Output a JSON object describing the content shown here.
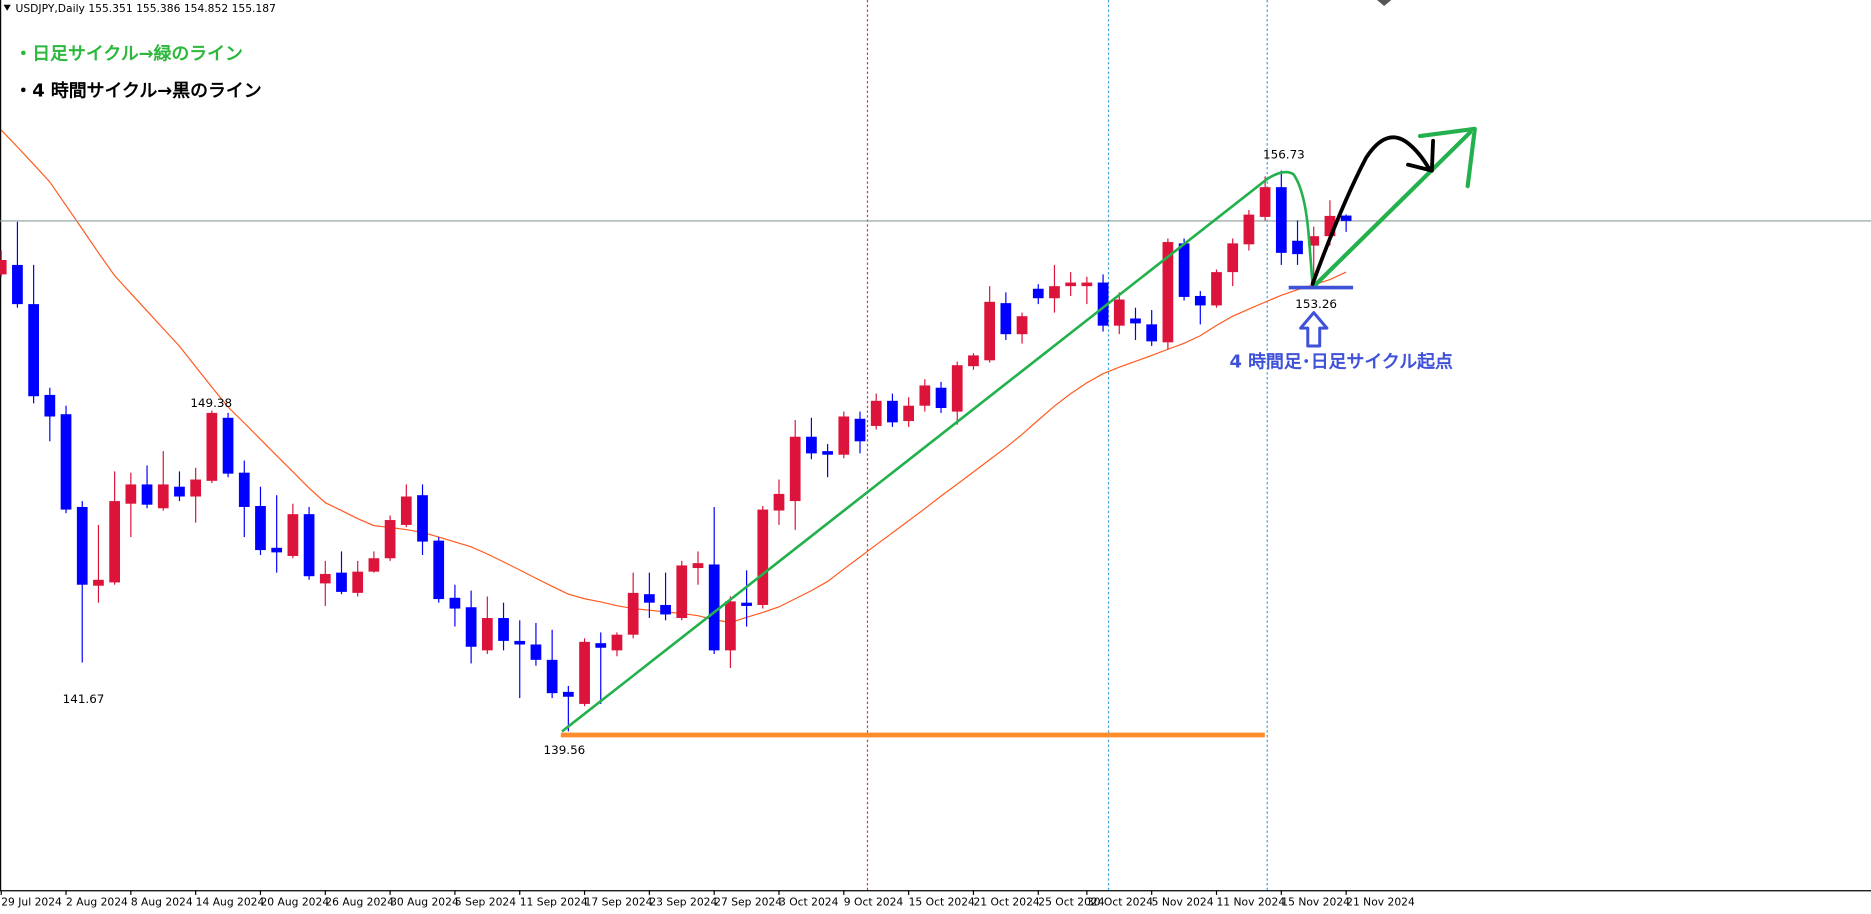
{
  "chart_data": {
    "type": "candlestick",
    "title": "USDJPY,Daily",
    "up_color": "#dc143c",
    "down_color": "#0000ff",
    "ylim": [
      134.7,
      161.95
    ],
    "categories": [
      "29 Jul 2024",
      null,
      null,
      null,
      "2 Aug 2024",
      null,
      null,
      null,
      "8 Aug 2024",
      null,
      null,
      null,
      "14 Aug 2024",
      null,
      null,
      null,
      "20 Aug 2024",
      null,
      null,
      null,
      "26 Aug 2024",
      null,
      null,
      null,
      "30 Aug 2024",
      null,
      null,
      null,
      "5 Sep 2024",
      null,
      null,
      null,
      "11 Sep 2024",
      null,
      null,
      null,
      "17 Sep 2024",
      null,
      null,
      null,
      "23 Sep 2024",
      null,
      null,
      null,
      "27 Sep 2024",
      null,
      null,
      null,
      "3 Oct 2024",
      null,
      null,
      null,
      "9 Oct 2024",
      null,
      null,
      null,
      "15 Oct 2024",
      null,
      null,
      null,
      "21 Oct 2024",
      null,
      null,
      null,
      "25 Oct 2024",
      null,
      null,
      "30 Oct 2024",
      null,
      null,
      null,
      "5 Nov 2024",
      null,
      null,
      null,
      "11 Nov 2024",
      null,
      null,
      null,
      "15 Nov 2024",
      null,
      null,
      null,
      "21 Nov 2024"
    ],
    "open": [
      153.55,
      153.84,
      152.64,
      149.86,
      149.27,
      146.43,
      144.02,
      144.12,
      146.53,
      147.12,
      146.39,
      147.05,
      146.75,
      147.23,
      149.16,
      147.48,
      146.46,
      145.18,
      144.93,
      146.21,
      144.09,
      144.42,
      143.8,
      144.45,
      144.86,
      145.88,
      146.79,
      145.4,
      143.65,
      143.36,
      142.04,
      143.03,
      142.33,
      142.22,
      141.75,
      140.77,
      140.4,
      142.26,
      142.04,
      142.52,
      143.76,
      143.43,
      143.03,
      144.56,
      144.67,
      142.04,
      143.5,
      143.43,
      146.32,
      146.61,
      148.58,
      148.14,
      148.03,
      149.13,
      148.91,
      149.68,
      149.06,
      149.53,
      150.08,
      149.35,
      150.74,
      150.92,
      152.67,
      151.72,
      153.11,
      152.82,
      153.19,
      153.19,
      153.3,
      151.98,
      152.2,
      152.02,
      151.47,
      154.5,
      152.89,
      152.6,
      153.62,
      154.47,
      155.31,
      156.22,
      154.58,
      154.43,
      154.72,
      155.351
    ],
    "high": [
      154.28,
      155.16,
      153.84,
      150.08,
      149.53,
      146.61,
      145.88,
      147.52,
      147.48,
      147.7,
      148.14,
      147.52,
      147.63,
      149.38,
      149.31,
      147.85,
      147.05,
      146.79,
      146.53,
      146.43,
      144.78,
      145.07,
      144.78,
      145.07,
      146.17,
      147.12,
      147.12,
      145.51,
      144.05,
      143.87,
      143.69,
      143.5,
      142.96,
      142.88,
      142.67,
      140.95,
      142.41,
      142.59,
      142.59,
      144.42,
      144.42,
      144.42,
      144.78,
      145.07,
      146.43,
      143.69,
      144.49,
      146.46,
      147.27,
      149.09,
      149.16,
      148.36,
      149.35,
      149.35,
      149.9,
      149.9,
      149.79,
      150.34,
      150.26,
      150.88,
      151.14,
      153.19,
      153.0,
      152.38,
      153.25,
      153.84,
      153.62,
      153.48,
      153.55,
      153.0,
      152.53,
      152.46,
      154.65,
      154.65,
      153.04,
      153.7,
      154.65,
      155.52,
      156.55,
      156.73,
      155.2,
      155.01,
      155.82,
      155.386
    ],
    "low": [
      153.48,
      152.53,
      149.6,
      148.44,
      146.24,
      141.67,
      143.5,
      144.05,
      145.51,
      146.39,
      146.32,
      146.61,
      145.95,
      147.16,
      147.34,
      145.51,
      144.96,
      144.42,
      144.86,
      144.2,
      143.4,
      143.76,
      143.69,
      144.42,
      144.78,
      145.81,
      144.96,
      143.5,
      142.77,
      141.64,
      141.93,
      142.04,
      140.58,
      141.57,
      140.58,
      139.56,
      140.33,
      140.4,
      141.86,
      142.41,
      143.03,
      142.96,
      142.96,
      144.05,
      141.93,
      141.5,
      142.77,
      143.32,
      145.88,
      145.73,
      147.89,
      147.34,
      147.92,
      148.07,
      148.8,
      148.88,
      148.88,
      149.35,
      149.31,
      148.95,
      150.63,
      150.85,
      151.54,
      151.43,
      152.64,
      152.38,
      152.89,
      152.64,
      151.8,
      151.72,
      151.54,
      151.36,
      151.25,
      152.75,
      152.02,
      152.53,
      153.19,
      154.28,
      155.2,
      153.84,
      153.84,
      153.26,
      154.43,
      154.852
    ],
    "close": [
      153.99,
      152.64,
      149.82,
      149.2,
      146.35,
      144.05,
      144.2,
      146.61,
      147.12,
      146.5,
      147.12,
      146.75,
      147.27,
      149.31,
      147.45,
      146.43,
      145.11,
      145.04,
      146.21,
      144.31,
      144.38,
      143.83,
      144.45,
      144.86,
      146.03,
      146.75,
      145.37,
      143.61,
      143.32,
      142.15,
      143.03,
      142.33,
      142.22,
      141.75,
      140.73,
      140.62,
      142.3,
      142.12,
      142.52,
      143.8,
      143.5,
      143.14,
      144.64,
      144.71,
      142.04,
      143.54,
      143.4,
      146.35,
      146.83,
      148.58,
      148.07,
      148.03,
      149.2,
      148.44,
      149.68,
      149.02,
      149.53,
      150.15,
      149.46,
      150.77,
      151.07,
      152.71,
      151.72,
      152.27,
      152.82,
      153.19,
      153.3,
      153.3,
      151.98,
      152.78,
      152.05,
      151.5,
      154.54,
      152.86,
      152.6,
      153.62,
      154.5,
      155.38,
      156.22,
      154.21,
      154.17,
      154.72,
      155.34,
      155.187
    ],
    "ma": {
      "color": "#ff5a1f",
      "values": [
        157.97,
        157.45,
        156.92,
        156.38,
        155.66,
        154.94,
        154.21,
        153.51,
        152.97,
        152.43,
        151.89,
        151.35,
        150.72,
        150.1,
        149.49,
        149.0,
        148.5,
        148.0,
        147.51,
        147.01,
        146.56,
        146.32,
        146.07,
        145.86,
        145.8,
        145.74,
        145.65,
        145.51,
        145.36,
        145.21,
        144.99,
        144.75,
        144.5,
        144.25,
        144.0,
        143.76,
        143.62,
        143.52,
        143.41,
        143.32,
        143.27,
        143.22,
        143.17,
        143.1,
        142.98,
        142.89,
        143.05,
        143.2,
        143.37,
        143.62,
        143.87,
        144.15,
        144.53,
        144.9,
        145.27,
        145.64,
        146.01,
        146.38,
        146.76,
        147.13,
        147.5,
        147.88,
        148.25,
        148.65,
        149.09,
        149.52,
        149.9,
        150.23,
        150.51,
        150.71,
        150.89,
        151.07,
        151.26,
        151.44,
        151.67,
        151.99,
        152.27,
        152.49,
        152.7,
        152.91,
        153.08,
        153.23,
        153.39,
        153.62
      ]
    },
    "price_labels": [
      156.73,
      149.38,
      141.67,
      139.56,
      153.26
    ],
    "notes": [
      "・日足サイクル→緑のライン",
      "・4 時間サイクル→黒のライン",
      "4 時間足･日足サイクル起点"
    ],
    "note_colors": [
      "#2db83d",
      "#000000",
      "#3f51d8"
    ]
  }
}
